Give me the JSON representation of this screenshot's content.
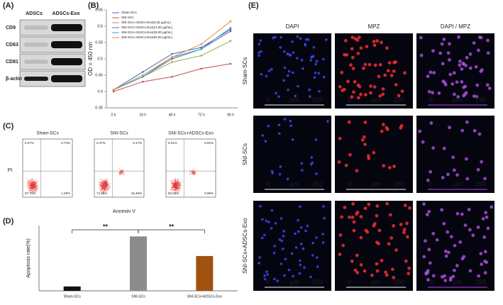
{
  "panels": {
    "a": {
      "label": "(A)",
      "columns": [
        "ADSCs",
        "ADSCs-Exo"
      ],
      "rows": [
        "CD9",
        "CD63",
        "CD81",
        "β-actin"
      ]
    },
    "c": {
      "label": "(C)",
      "y_label": "PI",
      "x_label": "Annexin V",
      "plots": [
        {
          "title": "Sham-SCs",
          "quadrants": [
            "0.27%",
            "0.74%",
            "97.70%",
            "1.29%"
          ]
        },
        {
          "title": "SNI-SCs",
          "quadrants": [
            "0.37%",
            "9.17%",
            "74.99%",
            "15.46%"
          ]
        },
        {
          "title": "SNI-SCs+ADSCs-Exo",
          "quadrants": [
            "0.31%",
            "6.81%",
            "82.92%",
            "9.96%"
          ]
        }
      ]
    },
    "e": {
      "label": "(E)",
      "columns": [
        "DAPI",
        "MPZ",
        "DAPI / MPZ"
      ],
      "rows": [
        "Sham-SCs",
        "SNI-SCs",
        "SNI-SCs+ADSCs-Exo"
      ],
      "scale_bar": [
        "0",
        "μm",
        "250"
      ]
    }
  },
  "chart_data": [
    {
      "type": "line",
      "label": "(B)",
      "y_label": "OD = 450 nm",
      "categories": [
        "0 h",
        "24 h",
        "48 h",
        "72 h",
        "96 h"
      ],
      "ylim": [
        0.35,
        0.65
      ],
      "yticks": [
        0.35,
        0.4,
        0.45,
        0.5,
        0.55,
        0.6,
        0.65
      ],
      "series": [
        {
          "name": "Sham-SCs",
          "color": "#3a6fc4",
          "values": [
            0.405,
            0.46,
            0.515,
            0.535,
            0.59
          ]
        },
        {
          "name": "SNI-SCs",
          "color": "#c0504d",
          "values": [
            0.4,
            0.43,
            0.445,
            0.47,
            0.485
          ]
        },
        {
          "name": "SNI-SCs+ADSCs-Exo(6.25 μg/mL)",
          "color": "#8fb040",
          "values": [
            0.405,
            0.445,
            0.49,
            0.51,
            0.555
          ]
        },
        {
          "name": "SNI-SCs+ADSCs-Exo(12.50 μg/mL)",
          "color": "#7a5ba8",
          "values": [
            0.405,
            0.445,
            0.5,
            0.53,
            0.585
          ]
        },
        {
          "name": "SNI-SCs+ADSCs-Exo(25.00 μg/mL)",
          "color": "#35a4c4",
          "values": [
            0.405,
            0.445,
            0.505,
            0.53,
            0.595
          ]
        },
        {
          "name": "SNI-SCs+ADSCs-Exo(50.00 μg/mL)",
          "color": "#e88a3a",
          "values": [
            0.405,
            0.45,
            0.505,
            0.545,
            0.615
          ]
        }
      ]
    },
    {
      "type": "bar",
      "label": "(D)",
      "y_label": "Apoptosis rate(%)",
      "categories": [
        "Sham-SCs",
        "SNI-SCs",
        "SNI-SCs+ADSCs-Exo"
      ],
      "values": [
        2,
        25,
        16
      ],
      "colors": [
        "#111111",
        "#8c8c8c",
        "#a0520f"
      ],
      "ylim": [
        0,
        30
      ],
      "annotations": [
        "**",
        "**"
      ]
    }
  ]
}
